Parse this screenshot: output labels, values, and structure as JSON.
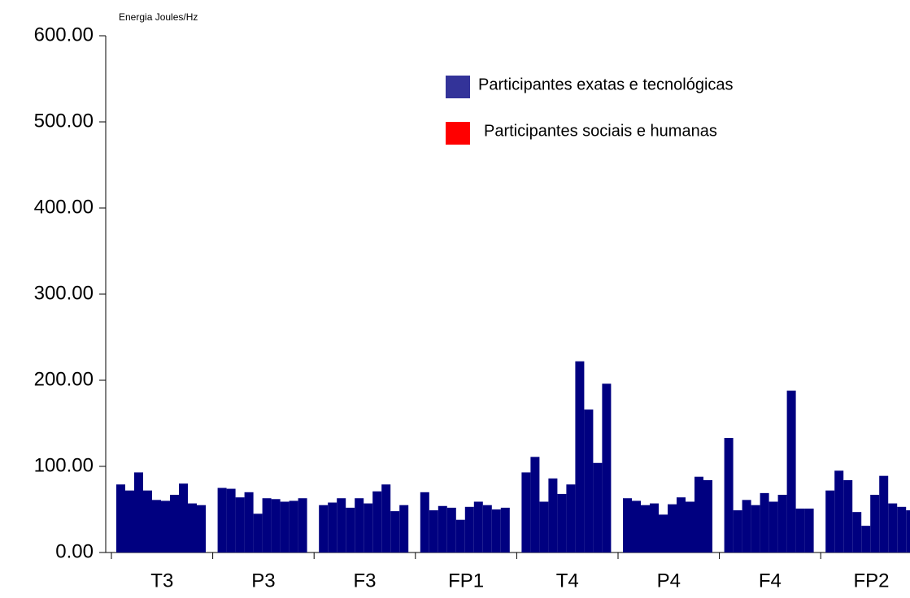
{
  "chart_data": {
    "type": "bar",
    "y_label": "Energia Joules/Hz",
    "categories": [
      "T3",
      "P3",
      "F3",
      "FP1",
      "T4",
      "P4",
      "F4",
      "FP2"
    ],
    "series": [
      {
        "name": "Participantes exatas e tecnológicas",
        "color": "#000080",
        "values": [
          [
            79,
            72,
            93,
            72,
            61,
            60,
            67,
            80,
            57,
            55
          ],
          [
            75,
            74,
            64,
            70,
            45,
            63,
            62,
            59,
            60,
            63
          ],
          [
            55,
            58,
            63,
            52,
            63,
            57,
            71,
            79,
            48,
            55
          ],
          [
            70,
            49,
            54,
            52,
            38,
            53,
            59,
            55,
            50,
            52
          ],
          [
            93,
            111,
            59,
            86,
            68,
            79,
            222,
            166,
            104,
            196
          ],
          [
            63,
            60,
            55,
            57,
            44,
            56,
            64,
            59,
            88,
            84
          ],
          [
            133,
            49,
            61,
            55,
            69,
            59,
            67,
            188,
            51,
            51
          ],
          [
            72,
            95,
            84,
            47,
            31,
            67,
            89,
            57,
            53,
            49
          ]
        ]
      },
      {
        "name": "Participantes sociais e humanas",
        "color": "#ff0000"
      }
    ],
    "legend_swatch_colors": [
      "#333399",
      "#ff0000"
    ],
    "ylim": [
      0,
      600
    ],
    "yticks": [
      {
        "value": 0,
        "label": "0.00"
      },
      {
        "value": 100,
        "label": "100.00"
      },
      {
        "value": 200,
        "label": "200.00"
      },
      {
        "value": 300,
        "label": "300.00"
      },
      {
        "value": 400,
        "label": "400.00"
      },
      {
        "value": 500,
        "label": "500.00"
      },
      {
        "value": 600,
        "label": "600.00"
      }
    ]
  }
}
